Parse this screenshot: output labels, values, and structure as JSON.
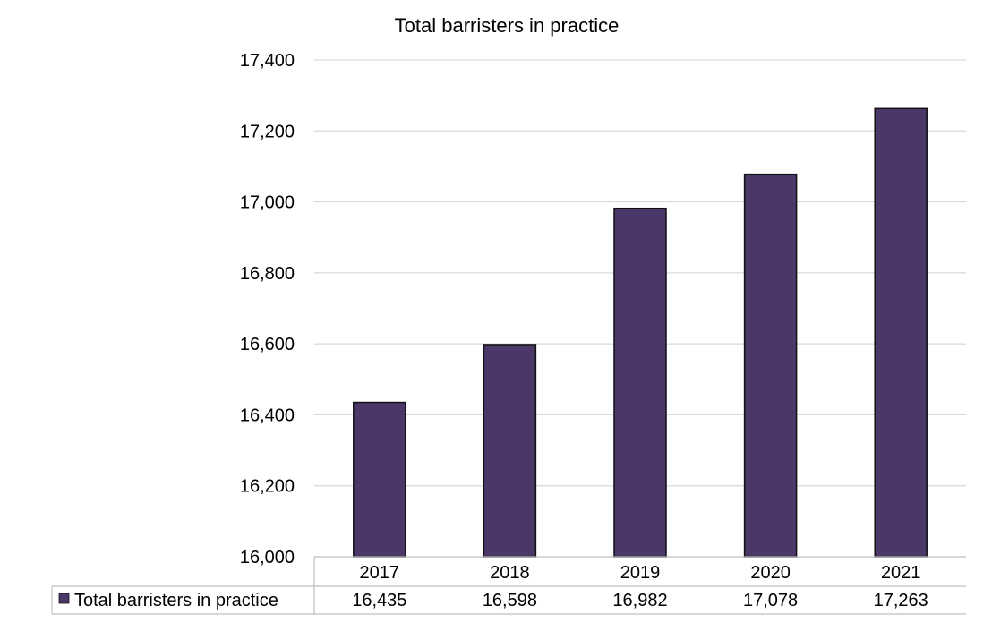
{
  "colors": {
    "bar": "#4b3869",
    "bar_outline": "#111111",
    "grid": "#d9d9d9",
    "table_line": "#bfbfbf"
  },
  "chart_data": {
    "type": "bar",
    "title": "Total barristers in practice",
    "categories": [
      "2017",
      "2018",
      "2019",
      "2020",
      "2021"
    ],
    "series": [
      {
        "name": "Total barristers in practice",
        "values": [
          16435,
          16598,
          16982,
          17078,
          17263
        ],
        "value_labels": [
          "16,435",
          "16,598",
          "16,982",
          "17,078",
          "17,263"
        ]
      }
    ],
    "ylim": [
      16000,
      17400
    ],
    "yticks": [
      16000,
      16200,
      16400,
      16600,
      16800,
      17000,
      17200,
      17400
    ],
    "ytick_labels": [
      "16,000",
      "16,200",
      "16,400",
      "16,600",
      "16,800",
      "17,000",
      "17,200",
      "17,400"
    ],
    "grid": true,
    "legend": "data-table"
  }
}
